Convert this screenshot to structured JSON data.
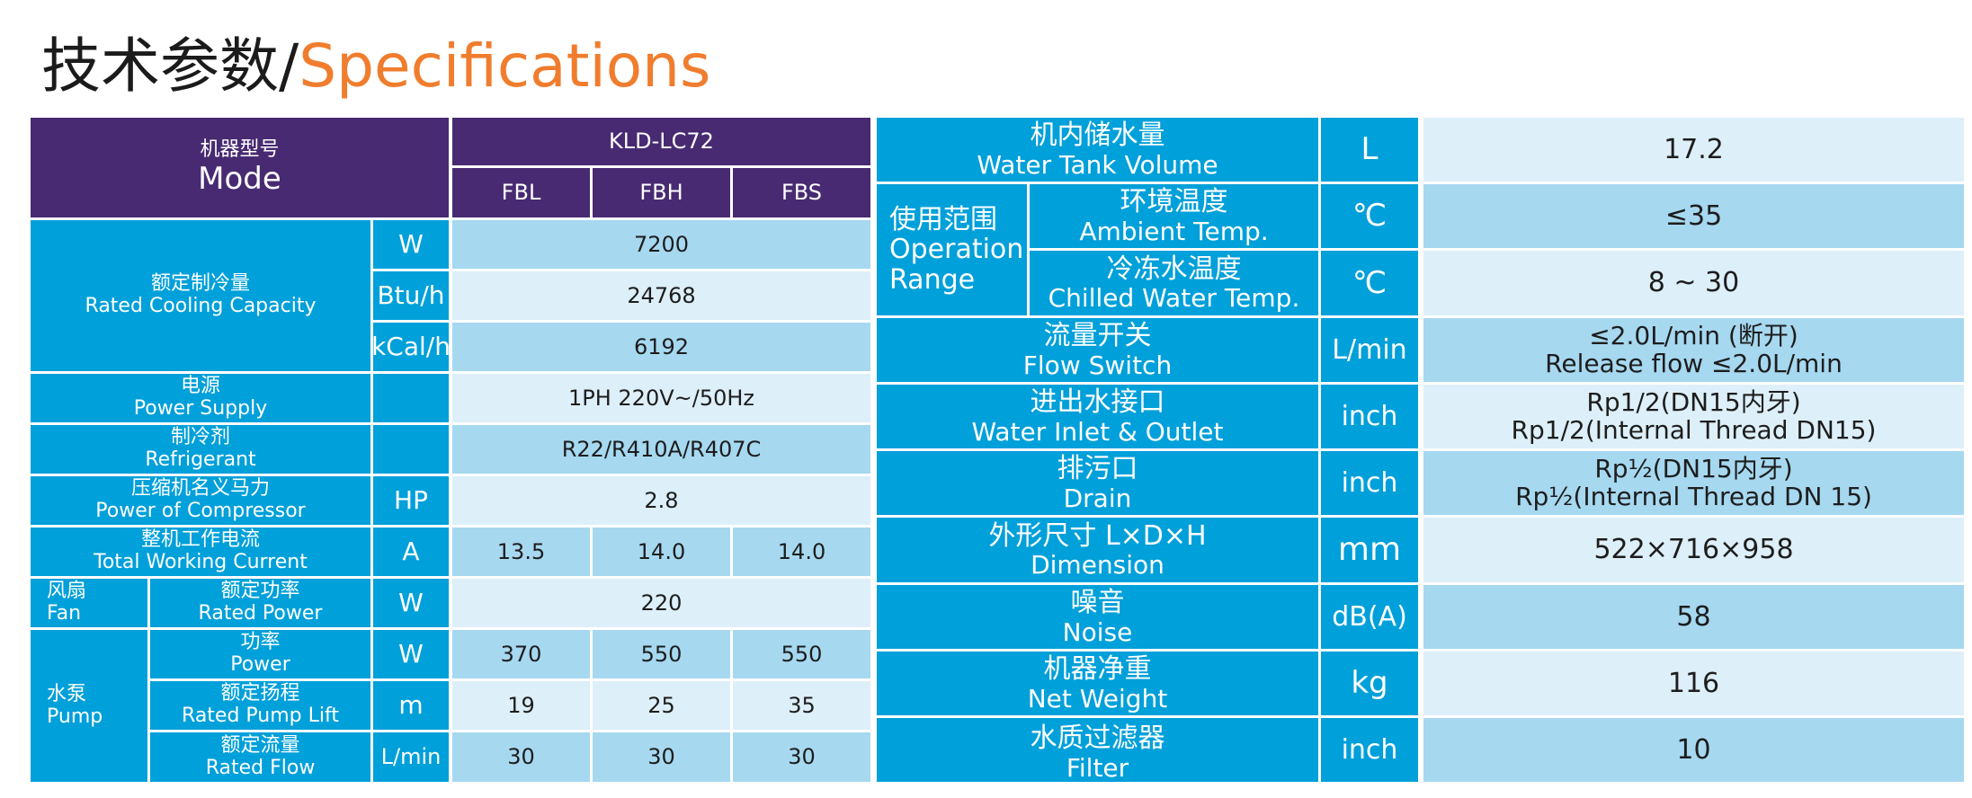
{
  "title": {
    "zh": "技术参数/",
    "en": "Specifications"
  },
  "left_table": {
    "model": {
      "zh": "机器型号",
      "en": "Mode",
      "name": "KLD-LC72",
      "variants": [
        "FBL",
        "FBH",
        "FBS"
      ]
    },
    "cooling": {
      "zh": "额定制冷量",
      "en": "Rated Cooling Capacity",
      "rows": [
        {
          "unit": "W",
          "value": "7200"
        },
        {
          "unit": "Btu/h",
          "value": "24768"
        },
        {
          "unit": "kCal/h",
          "value": "6192"
        }
      ]
    },
    "power_supply": {
      "zh": "电源",
      "en": "Power Supply",
      "value": "1PH 220V~/50Hz"
    },
    "refrigerant": {
      "zh": "制冷剂",
      "en": "Refrigerant",
      "value": "R22/R410A/R407C"
    },
    "compressor": {
      "zh": "压缩机名义马力",
      "en": "Power of Compressor",
      "unit": "HP",
      "value": "2.8"
    },
    "current": {
      "zh": "整机工作电流",
      "en": "Total Working Current",
      "unit": "A",
      "values": [
        "13.5",
        "14.0",
        "14.0"
      ]
    },
    "fan": {
      "zh": "风扇",
      "en": "Fan",
      "sub_zh": "额定功率",
      "sub_en": "Rated Power",
      "unit": "W",
      "value": "220"
    },
    "pump": {
      "zh": "水泵",
      "en": "Pump",
      "rows": [
        {
          "zh": "功率",
          "en": "Power",
          "unit": "W",
          "values": [
            "370",
            "550",
            "550"
          ]
        },
        {
          "zh": "额定扬程",
          "en": "Rated Pump Lift",
          "unit": "m",
          "values": [
            "19",
            "25",
            "35"
          ]
        },
        {
          "zh": "额定流量",
          "en": "Rated Flow",
          "unit": "L/min",
          "values": [
            "30",
            "30",
            "30"
          ]
        }
      ]
    }
  },
  "right_table": {
    "tank": {
      "zh": "机内储水量",
      "en": "Water Tank Volume",
      "unit": "L",
      "value": "17.2"
    },
    "range": {
      "zh": "使用范围",
      "en1": "Operation",
      "en2": "Range",
      "ambient": {
        "zh": "环境温度",
        "en": "Ambient Temp.",
        "unit": "℃",
        "value": "≤35"
      },
      "chilled": {
        "zh": "冷冻水温度",
        "en": "Chilled Water Temp.",
        "unit": "℃",
        "value": "8 ~ 30"
      }
    },
    "flow_switch": {
      "zh": "流量开关",
      "en": "Flow Switch",
      "unit": "L/min",
      "value1": "≤2.0L/min (断开)",
      "value2": "Release flow ≤2.0L/min"
    },
    "inlet": {
      "zh": "进出水接口",
      "en": "Water Inlet & Outlet",
      "unit": "inch",
      "value1": "Rp1/2(DN15内牙)",
      "value2": "Rp1/2(Internal Thread DN15)"
    },
    "drain": {
      "zh": "排污口",
      "en": "Drain",
      "unit": "inch",
      "value1": "Rp½(DN15内牙)",
      "value2": "Rp½(Internal Thread DN 15)"
    },
    "dimension": {
      "zh": "外形尺寸 L×D×H",
      "en": "Dimension",
      "unit": "mm",
      "value": "522×716×958"
    },
    "noise": {
      "zh": "噪音",
      "en": "Noise",
      "unit": "dB(A)",
      "value": "58"
    },
    "weight": {
      "zh": "机器净重",
      "en": "Net Weight",
      "unit": "kg",
      "value": "116"
    },
    "filter": {
      "zh": "水质过滤器",
      "en": "Filter",
      "unit": "inch",
      "value": "10"
    }
  }
}
